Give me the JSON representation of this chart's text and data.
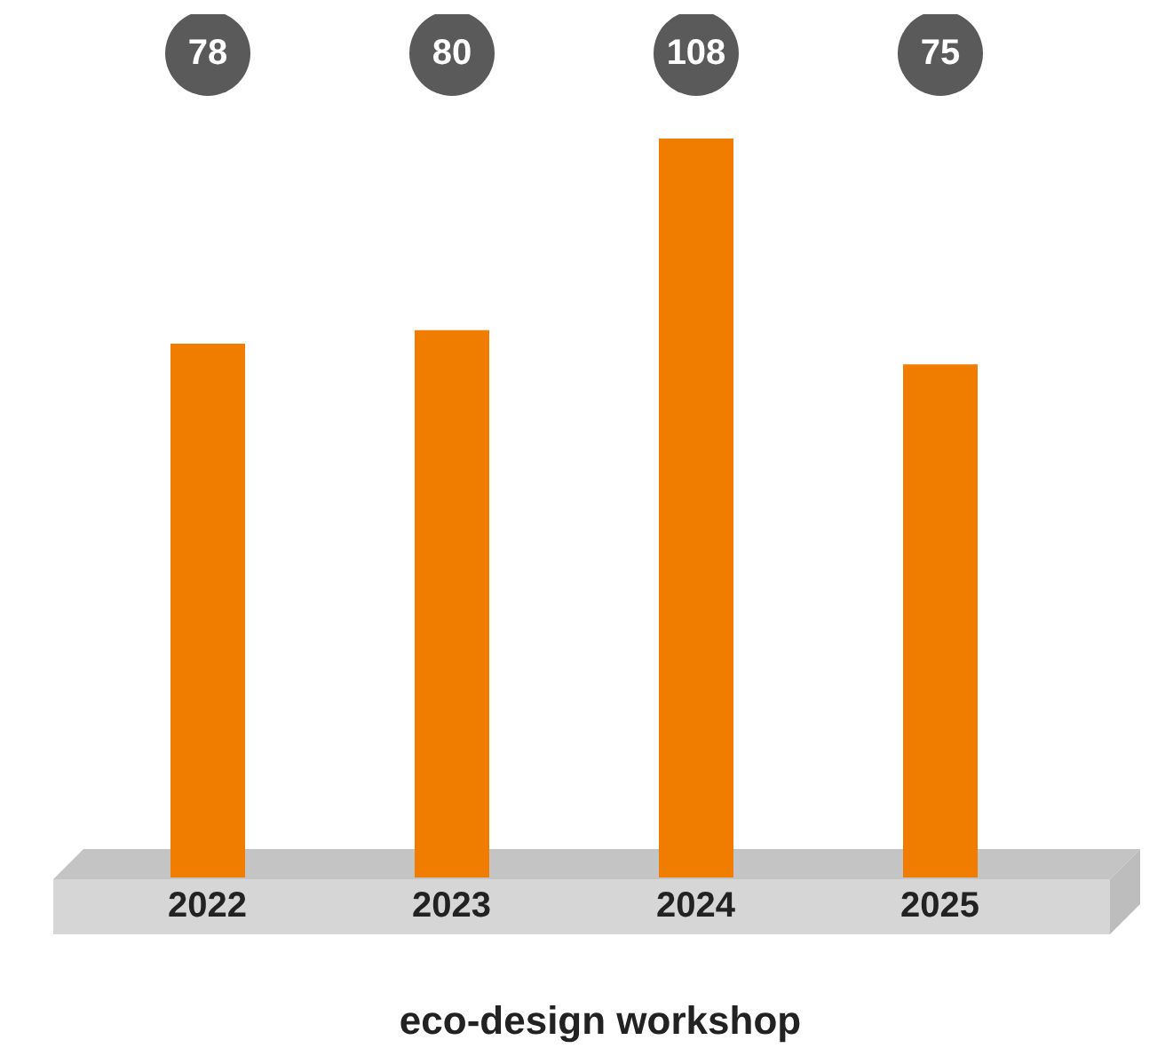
{
  "chart_data": {
    "type": "bar",
    "xlabel": "eco-design workshop",
    "categories": [
      "2022",
      "2023",
      "2024",
      "2025"
    ],
    "values": [
      78,
      80,
      108,
      75
    ],
    "color": "#f07c00",
    "data_labels": true
  }
}
